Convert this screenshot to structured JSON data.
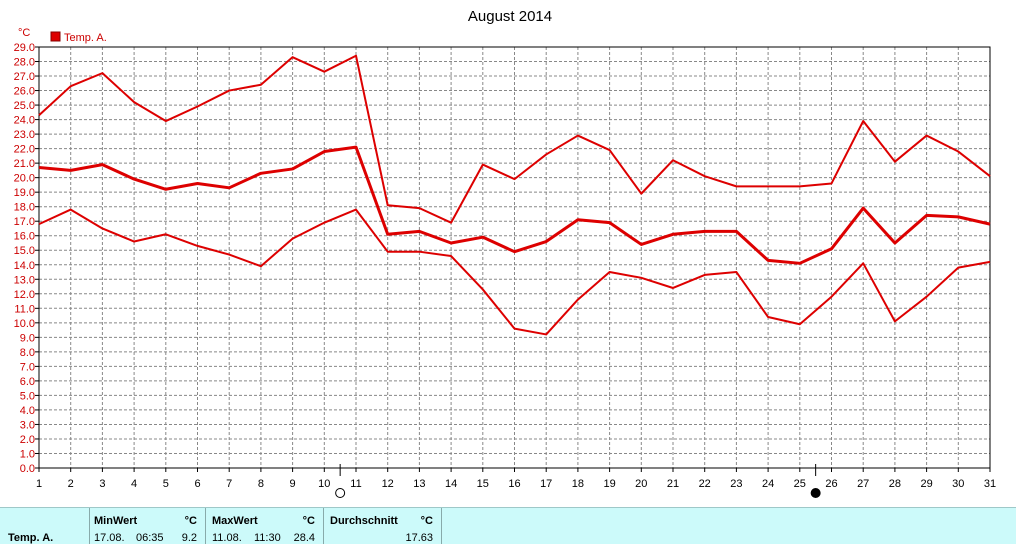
{
  "chart_data": {
    "type": "line",
    "title": "August 2014",
    "y_unit": "°C",
    "legend": "Temp. A.",
    "legend_placement": "top-left",
    "grid": true,
    "ylim": [
      0,
      29
    ],
    "xlim": [
      1,
      31
    ],
    "x": [
      1,
      2,
      3,
      4,
      5,
      6,
      7,
      8,
      9,
      10,
      11,
      12,
      13,
      14,
      15,
      16,
      17,
      18,
      19,
      20,
      21,
      22,
      23,
      24,
      25,
      26,
      27,
      28,
      29,
      30,
      31
    ],
    "series": [
      {
        "role": "max",
        "color": "#dd0000",
        "values": [
          24.3,
          26.3,
          27.2,
          25.2,
          23.9,
          24.9,
          26.0,
          26.4,
          28.3,
          27.3,
          28.4,
          18.1,
          17.9,
          16.9,
          20.9,
          19.9,
          21.6,
          22.9,
          21.9,
          18.9,
          21.2,
          20.1,
          19.4,
          19.4,
          19.4,
          19.6,
          23.9,
          21.1,
          22.9,
          21.8,
          20.1
        ]
      },
      {
        "role": "avg",
        "color": "#dd0000",
        "values": [
          20.7,
          20.5,
          20.9,
          19.9,
          19.2,
          19.6,
          19.3,
          20.3,
          20.6,
          21.8,
          22.1,
          16.1,
          16.3,
          15.5,
          15.9,
          14.9,
          15.6,
          17.1,
          16.9,
          15.4,
          16.1,
          16.3,
          16.3,
          14.3,
          14.1,
          15.1,
          17.9,
          15.5,
          17.4,
          17.3,
          16.8
        ]
      },
      {
        "role": "min",
        "color": "#dd0000",
        "values": [
          16.8,
          17.8,
          16.5,
          15.6,
          16.1,
          15.3,
          14.7,
          13.9,
          15.8,
          16.9,
          17.8,
          14.9,
          14.9,
          14.6,
          12.3,
          9.6,
          9.2,
          11.6,
          13.5,
          13.1,
          12.4,
          13.3,
          13.5,
          10.4,
          9.9,
          11.8,
          14.1,
          10.1,
          11.8,
          13.8,
          14.2
        ]
      }
    ],
    "y_ticks": [
      "0.0",
      "1.0",
      "2.0",
      "3.0",
      "4.0",
      "5.0",
      "6.0",
      "7.0",
      "8.0",
      "9.0",
      "10.0",
      "11.0",
      "12.0",
      "13.0",
      "14.0",
      "15.0",
      "16.0",
      "17.0",
      "18.0",
      "19.0",
      "20.0",
      "21.0",
      "22.0",
      "23.0",
      "24.0",
      "25.0",
      "26.0",
      "27.0",
      "28.0",
      "29.0"
    ],
    "x_ticks": [
      "1",
      "2",
      "3",
      "4",
      "5",
      "6",
      "7",
      "8",
      "9",
      "10",
      "11",
      "12",
      "13",
      "14",
      "15",
      "16",
      "17",
      "18",
      "19",
      "20",
      "21",
      "22",
      "23",
      "24",
      "25",
      "26",
      "27",
      "28",
      "29",
      "30",
      "31"
    ],
    "moon_markers": [
      {
        "day": 10.5,
        "phase": "full",
        "icon": "full-moon-icon"
      },
      {
        "day": 25.5,
        "phase": "new",
        "icon": "new-moon-icon"
      }
    ]
  },
  "stats": {
    "series_label": "Temp. A.",
    "min": {
      "header": "MinWert",
      "unit": "°C",
      "date": "17.08.",
      "time": "06:35",
      "value": "9.2"
    },
    "max": {
      "header": "MaxWert",
      "unit": "°C",
      "date": "11.08.",
      "time": "11:30",
      "value": "28.4"
    },
    "avg": {
      "header": "Durchschnitt",
      "unit": "°C",
      "value": "17.63"
    }
  }
}
